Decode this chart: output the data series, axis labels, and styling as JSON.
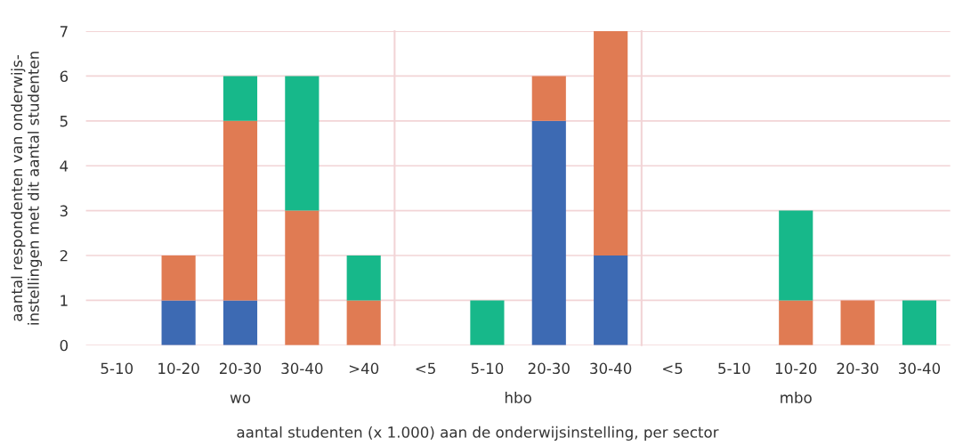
{
  "chart_data": [
    {
      "type": "bar",
      "stacked": true,
      "xlabel": "wo",
      "ylabel": "aantal respondenten van onderwijs-\ninstellingen met dit aantal studenten",
      "categories": [
        "5-10",
        "10-20",
        "20-30",
        "30-40",
        ">40"
      ],
      "series": [
        {
          "color": "#3d6ab3",
          "values": [
            0,
            1,
            1,
            0,
            0
          ]
        },
        {
          "color": "#e07b53",
          "values": [
            0,
            1,
            4,
            3,
            1
          ]
        },
        {
          "color": "#17b88a",
          "values": [
            0,
            0,
            1,
            3,
            1
          ]
        }
      ],
      "ylim": [
        0,
        7
      ],
      "yticks": [
        0,
        1,
        2,
        3,
        4,
        5,
        6,
        7
      ],
      "grid": "y"
    },
    {
      "type": "bar",
      "stacked": true,
      "xlabel": "hbo",
      "categories": [
        "<5",
        "5-10",
        "20-30",
        "30-40"
      ],
      "series": [
        {
          "color": "#3d6ab3",
          "values": [
            0,
            0,
            5,
            2
          ]
        },
        {
          "color": "#e07b53",
          "values": [
            0,
            0,
            1,
            5
          ]
        },
        {
          "color": "#17b88a",
          "values": [
            0,
            1,
            0,
            0
          ]
        }
      ],
      "ylim": [
        0,
        7
      ],
      "yticks": [
        0,
        1,
        2,
        3,
        4,
        5,
        6,
        7
      ],
      "grid": "y",
      "tick_labels": "x",
      "annotations": [
        "aantal studenten (x 1.000) aan de onderwijsinstelling, per sector"
      ]
    },
    {
      "type": "bar",
      "stacked": true,
      "xlabel": "mbo",
      "categories": [
        "<5",
        "5-10",
        "10-20",
        "20-30",
        "30-40"
      ],
      "series": [
        {
          "color": "#3d6ab3",
          "values": [
            0,
            0,
            0,
            0,
            0
          ]
        },
        {
          "color": "#e07b53",
          "values": [
            0,
            0,
            1,
            1,
            0
          ]
        },
        {
          "color": "#17b88a",
          "values": [
            0,
            0,
            2,
            0,
            1
          ]
        }
      ],
      "ylim": [
        0,
        7
      ],
      "yticks": [
        0,
        1,
        2,
        3,
        4,
        5,
        6,
        7
      ],
      "grid": "y",
      "tick_labels": "x"
    }
  ]
}
